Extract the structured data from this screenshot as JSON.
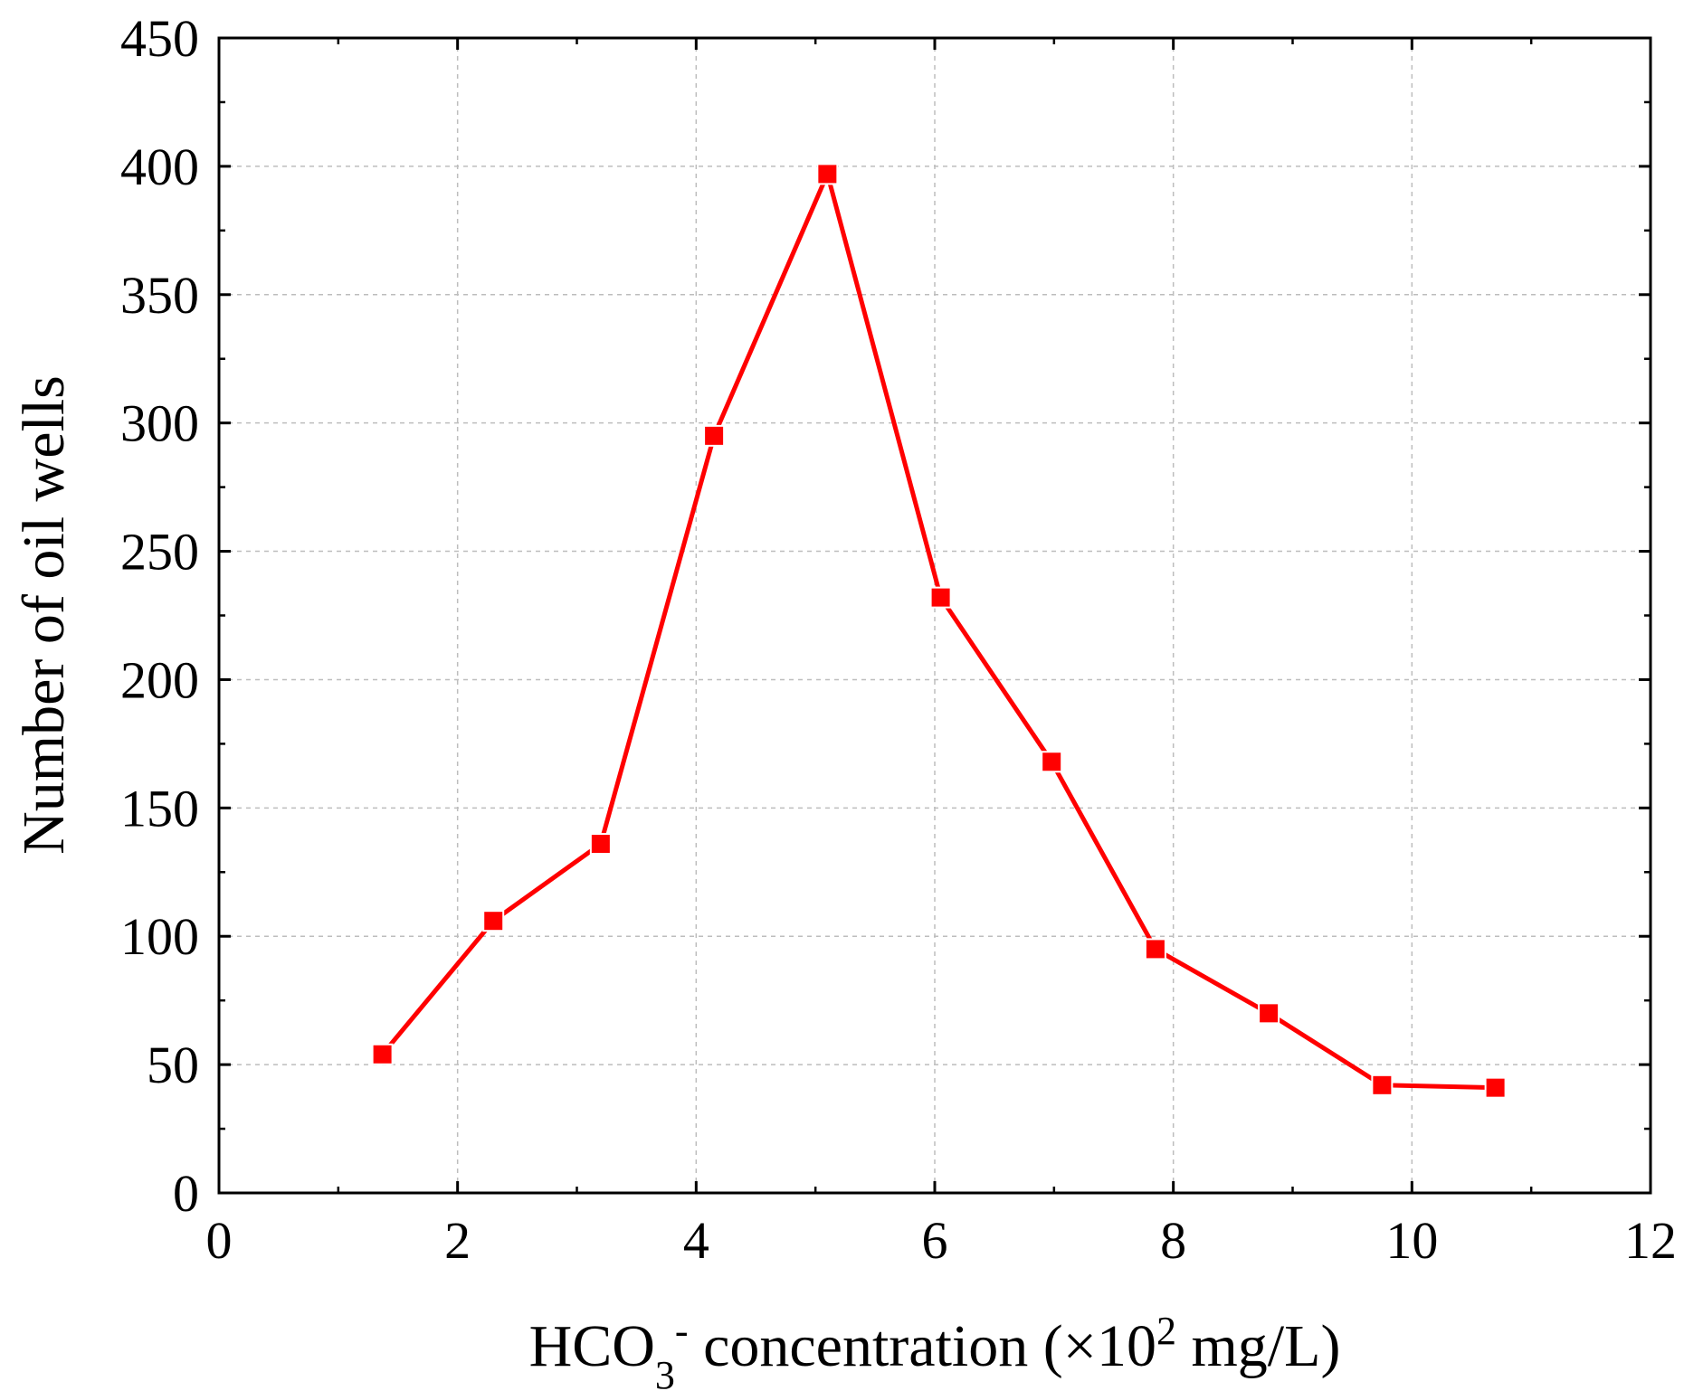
{
  "chart_data": {
    "type": "line",
    "xlabel_parts": {
      "pre": "HCO",
      "sub": "3",
      "sup": "-",
      "mid": " concentration (×10",
      "exp": "2",
      "post": " mg/L)"
    },
    "ylabel": "Number of oil wells",
    "xlim": [
      0,
      12
    ],
    "ylim": [
      0,
      450
    ],
    "xticks": [
      0,
      2,
      4,
      6,
      8,
      10,
      12
    ],
    "yticks": [
      0,
      50,
      100,
      150,
      200,
      250,
      300,
      350,
      400,
      450
    ],
    "x_minor_step": 1,
    "y_minor_step": 25,
    "grid": true,
    "series": [
      {
        "name": "Oil wells",
        "color": "#ff0000",
        "marker": "square",
        "x": [
          1.37,
          2.3,
          3.2,
          4.15,
          5.1,
          6.05,
          6.98,
          7.85,
          8.8,
          9.75,
          10.7
        ],
        "y": [
          54,
          106,
          136,
          295,
          397,
          232,
          168,
          95,
          70,
          42,
          41
        ]
      }
    ]
  }
}
